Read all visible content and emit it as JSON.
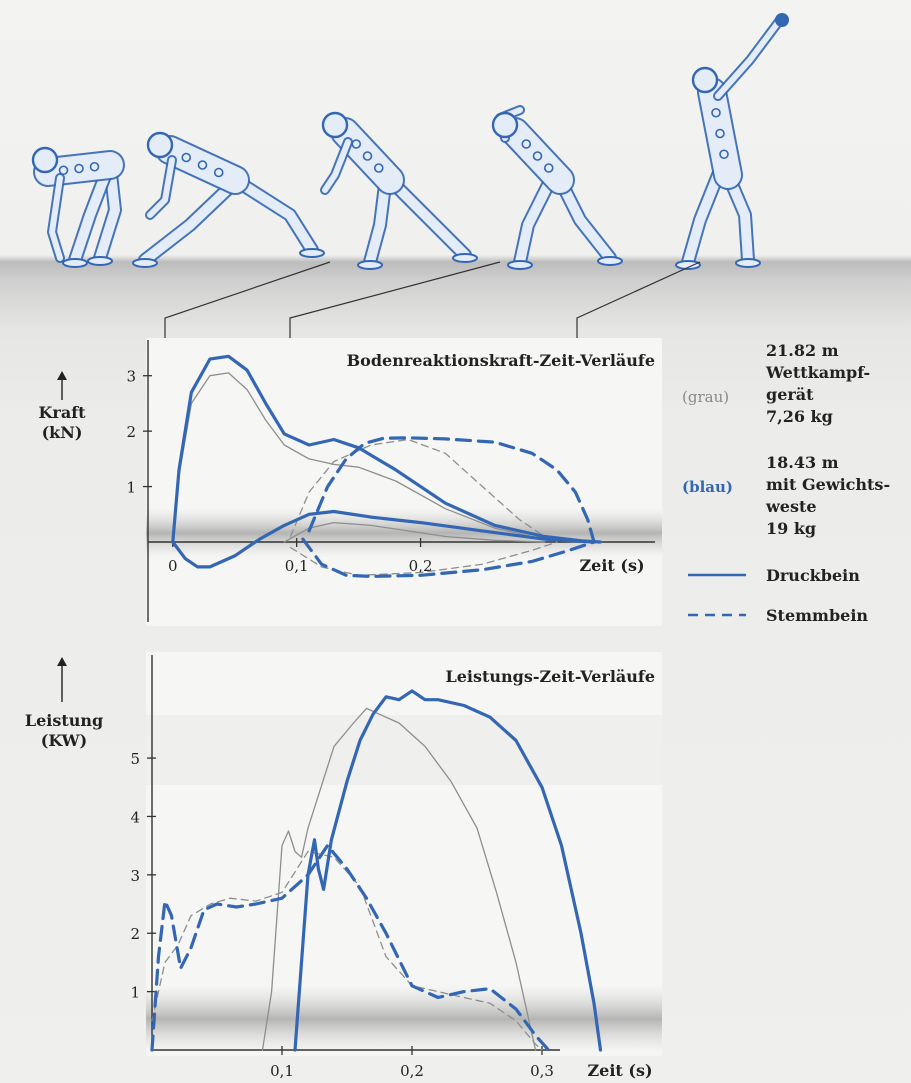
{
  "colors": {
    "blue": "#3366b3",
    "gray": "#8e8e8e",
    "figure_outline": "#3366b3",
    "figure_fill": "#dfe8f6",
    "panel_background": "#f6f6f4"
  },
  "illustration": {
    "description_icons": [
      "thrower-phase-1",
      "thrower-phase-2",
      "thrower-phase-3",
      "thrower-phase-4",
      "thrower-phase-5"
    ],
    "icon": "athlete-figure-icon"
  },
  "legend": {
    "grau_tag": "(grau)",
    "grau_lines": [
      "21.82 m",
      "Wettkampf-",
      "gerät",
      "7,26 kg"
    ],
    "blau_tag": "(blau)",
    "blau_lines": [
      "18.43 m",
      "mit Gewichts-",
      "weste",
      "19 kg"
    ],
    "druckbein": "Druckbein",
    "stemmbein": "Stemmbein"
  },
  "chart_data": [
    {
      "type": "line",
      "title": "Bodenreaktionskraft-Zeit-Verläufe",
      "ylabel_lines": [
        "Kraft",
        "(kN)"
      ],
      "xlabel": "Zeit (s)",
      "xticks": [
        "0",
        "0,1",
        "0,2"
      ],
      "yticks": [
        "1",
        "2",
        "3"
      ],
      "xlim": [
        -0.02,
        0.365
      ],
      "ylim": [
        -0.6,
        3.5
      ],
      "grid": false,
      "series": [
        {
          "name": "grau",
          "style": "thin-solid",
          "leg": "Druckbein",
          "x": [
            0.0,
            0.005,
            0.015,
            0.03,
            0.045,
            0.06,
            0.075,
            0.09,
            0.11,
            0.13,
            0.15,
            0.18,
            0.22,
            0.26,
            0.3,
            0.33
          ],
          "y": [
            0,
            1.2,
            2.5,
            3.0,
            3.05,
            2.75,
            2.2,
            1.75,
            1.5,
            1.4,
            1.35,
            1.1,
            0.6,
            0.25,
            0.05,
            0
          ]
        },
        {
          "name": "grau",
          "style": "thin-solid",
          "leg": "Druckbein",
          "x": [
            0.09,
            0.11,
            0.13,
            0.16,
            0.19,
            0.22,
            0.26,
            0.3
          ],
          "y": [
            0,
            0.25,
            0.35,
            0.3,
            0.2,
            0.1,
            0.03,
            0
          ]
        },
        {
          "name": "grau",
          "style": "thin-dashed",
          "leg": "Stemmbein",
          "x": [
            0.095,
            0.11,
            0.13,
            0.16,
            0.19,
            0.22,
            0.25,
            0.28,
            0.3,
            0.31
          ],
          "y": [
            0.1,
            0.9,
            1.45,
            1.75,
            1.85,
            1.6,
            1.0,
            0.4,
            0.1,
            0
          ]
        },
        {
          "name": "grau",
          "style": "thin-dashed",
          "leg": "Stemmbein",
          "x": [
            0.095,
            0.12,
            0.15,
            0.2,
            0.25,
            0.29,
            0.31
          ],
          "y": [
            -0.1,
            -0.45,
            -0.6,
            -0.55,
            -0.4,
            -0.15,
            0
          ]
        },
        {
          "name": "blau",
          "style": "thick-solid",
          "leg": "Druckbein",
          "x": [
            0.0,
            0.005,
            0.015,
            0.03,
            0.045,
            0.06,
            0.075,
            0.09,
            0.11,
            0.13,
            0.15,
            0.18,
            0.22,
            0.26,
            0.3,
            0.33,
            0.345
          ],
          "y": [
            0,
            1.3,
            2.7,
            3.3,
            3.35,
            3.1,
            2.5,
            1.95,
            1.75,
            1.85,
            1.7,
            1.3,
            0.7,
            0.3,
            0.1,
            0.02,
            0
          ]
        },
        {
          "name": "blau",
          "style": "thick-solid",
          "leg": "Druckbein",
          "x": [
            0.0,
            0.01,
            0.02,
            0.03,
            0.05,
            0.07,
            0.09,
            0.11,
            0.13,
            0.16,
            0.2,
            0.25,
            0.3,
            0.34
          ],
          "y": [
            0,
            -0.3,
            -0.45,
            -0.45,
            -0.25,
            0.05,
            0.3,
            0.5,
            0.55,
            0.45,
            0.35,
            0.2,
            0.05,
            0
          ]
        },
        {
          "name": "blau",
          "style": "thick-dashed",
          "leg": "Stemmbein",
          "x": [
            0.11,
            0.125,
            0.14,
            0.155,
            0.17,
            0.19,
            0.22,
            0.26,
            0.29,
            0.31,
            0.325,
            0.335,
            0.34
          ],
          "y": [
            0.2,
            1.0,
            1.5,
            1.78,
            1.87,
            1.88,
            1.86,
            1.8,
            1.6,
            1.3,
            0.9,
            0.4,
            0
          ]
        },
        {
          "name": "blau",
          "style": "thick-dashed",
          "leg": "Stemmbein",
          "x": [
            0.105,
            0.12,
            0.14,
            0.16,
            0.2,
            0.25,
            0.29,
            0.32,
            0.34
          ],
          "y": [
            0.05,
            -0.4,
            -0.6,
            -0.62,
            -0.6,
            -0.5,
            -0.35,
            -0.15,
            0
          ]
        }
      ]
    },
    {
      "type": "line",
      "title": "Leistungs-Zeit-Verläufe",
      "ylabel_lines": [
        "Leistung",
        "(KW)"
      ],
      "xlabel": "Zeit (s)",
      "xticks": [
        "0,1",
        "0,2",
        "0,3"
      ],
      "yticks": [
        "1",
        "2",
        "3",
        "4",
        "5"
      ],
      "xlim": [
        0.0,
        0.36
      ],
      "ylim": [
        0,
        6.2
      ],
      "grid": false,
      "series": [
        {
          "name": "grau",
          "style": "thin-solid",
          "leg": "Druckbein",
          "x": [
            0.085,
            0.092,
            0.1,
            0.105,
            0.11,
            0.115,
            0.12,
            0.13,
            0.14,
            0.155,
            0.165,
            0.175,
            0.19,
            0.21,
            0.23,
            0.25,
            0.265,
            0.28,
            0.29,
            0.295
          ],
          "y": [
            0,
            1.0,
            3.5,
            3.75,
            3.4,
            3.3,
            3.8,
            4.5,
            5.2,
            5.6,
            5.85,
            5.75,
            5.6,
            5.2,
            4.6,
            3.8,
            2.7,
            1.5,
            0.5,
            0
          ]
        },
        {
          "name": "grau",
          "style": "thin-dashed",
          "leg": "Stemmbein",
          "x": [
            0.0,
            0.01,
            0.02,
            0.03,
            0.045,
            0.06,
            0.08,
            0.1,
            0.12,
            0.14,
            0.16,
            0.18,
            0.2,
            0.22,
            0.24,
            0.26,
            0.28,
            0.295,
            0.3
          ],
          "y": [
            0.5,
            1.5,
            1.8,
            2.3,
            2.5,
            2.6,
            2.55,
            2.7,
            3.4,
            3.3,
            2.8,
            1.6,
            1.1,
            1.0,
            0.9,
            0.8,
            0.5,
            0.1,
            0
          ]
        },
        {
          "name": "blau",
          "style": "thick-solid",
          "leg": "Druckbein",
          "x": [
            0.11,
            0.115,
            0.12,
            0.125,
            0.128,
            0.132,
            0.138,
            0.15,
            0.16,
            0.17,
            0.18,
            0.19,
            0.2,
            0.21,
            0.22,
            0.24,
            0.26,
            0.28,
            0.3,
            0.315,
            0.33,
            0.34,
            0.345
          ],
          "y": [
            0,
            1.5,
            3.0,
            3.6,
            3.1,
            2.75,
            3.6,
            4.6,
            5.3,
            5.75,
            6.05,
            6.0,
            6.15,
            6.0,
            6.0,
            5.9,
            5.7,
            5.3,
            4.5,
            3.5,
            2.0,
            0.8,
            0
          ]
        },
        {
          "name": "blau",
          "style": "thick-dashed",
          "leg": "Stemmbein",
          "x": [
            0.0,
            0.005,
            0.01,
            0.015,
            0.022,
            0.03,
            0.04,
            0.05,
            0.065,
            0.08,
            0.1,
            0.12,
            0.135,
            0.15,
            0.165,
            0.18,
            0.2,
            0.22,
            0.24,
            0.26,
            0.28,
            0.295,
            0.305
          ],
          "y": [
            0,
            1.6,
            2.55,
            2.3,
            1.4,
            1.75,
            2.4,
            2.5,
            2.45,
            2.5,
            2.6,
            3.0,
            3.5,
            3.1,
            2.6,
            2.0,
            1.1,
            0.9,
            1.0,
            1.05,
            0.7,
            0.25,
            0
          ]
        }
      ]
    }
  ]
}
